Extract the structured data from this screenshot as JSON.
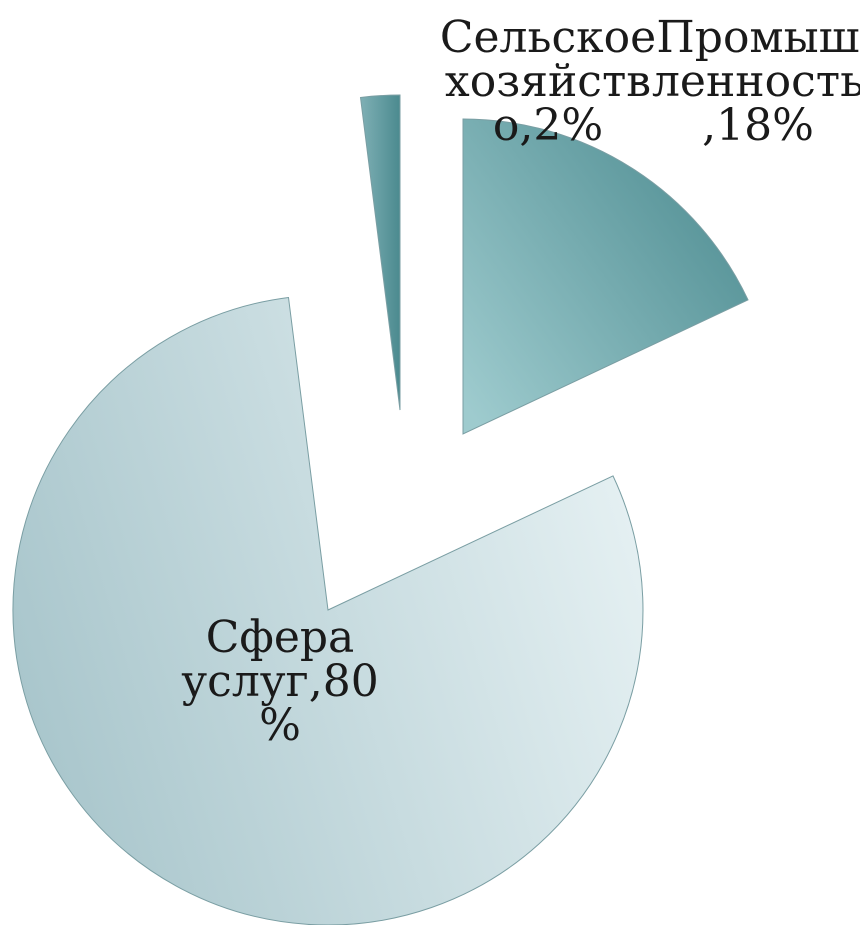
{
  "chart_data": {
    "type": "pie",
    "exploded": true,
    "start_angle": "top",
    "direction": "clockwise",
    "slices": [
      {
        "name": "Промышленность",
        "value": 18,
        "label_lines": [
          "Промыш",
          "ленность",
          ",18%"
        ],
        "color_light": "#9ecbce",
        "color_dark": "#4b8a8f"
      },
      {
        "name": "Сфера услуг",
        "value": 80,
        "label_lines": [
          "Сфера",
          "услуг,80",
          "%"
        ],
        "color_light": "#e6f1f3",
        "color_dark": "#a9c6cc"
      },
      {
        "name": "Сельское хозяйство",
        "value": 2,
        "label_lines": [
          "Сельское",
          "хозяйств",
          "о,2%"
        ],
        "color_light": "#7fb0b5",
        "color_dark": "#4b8a8f"
      }
    ],
    "legend": "none"
  }
}
